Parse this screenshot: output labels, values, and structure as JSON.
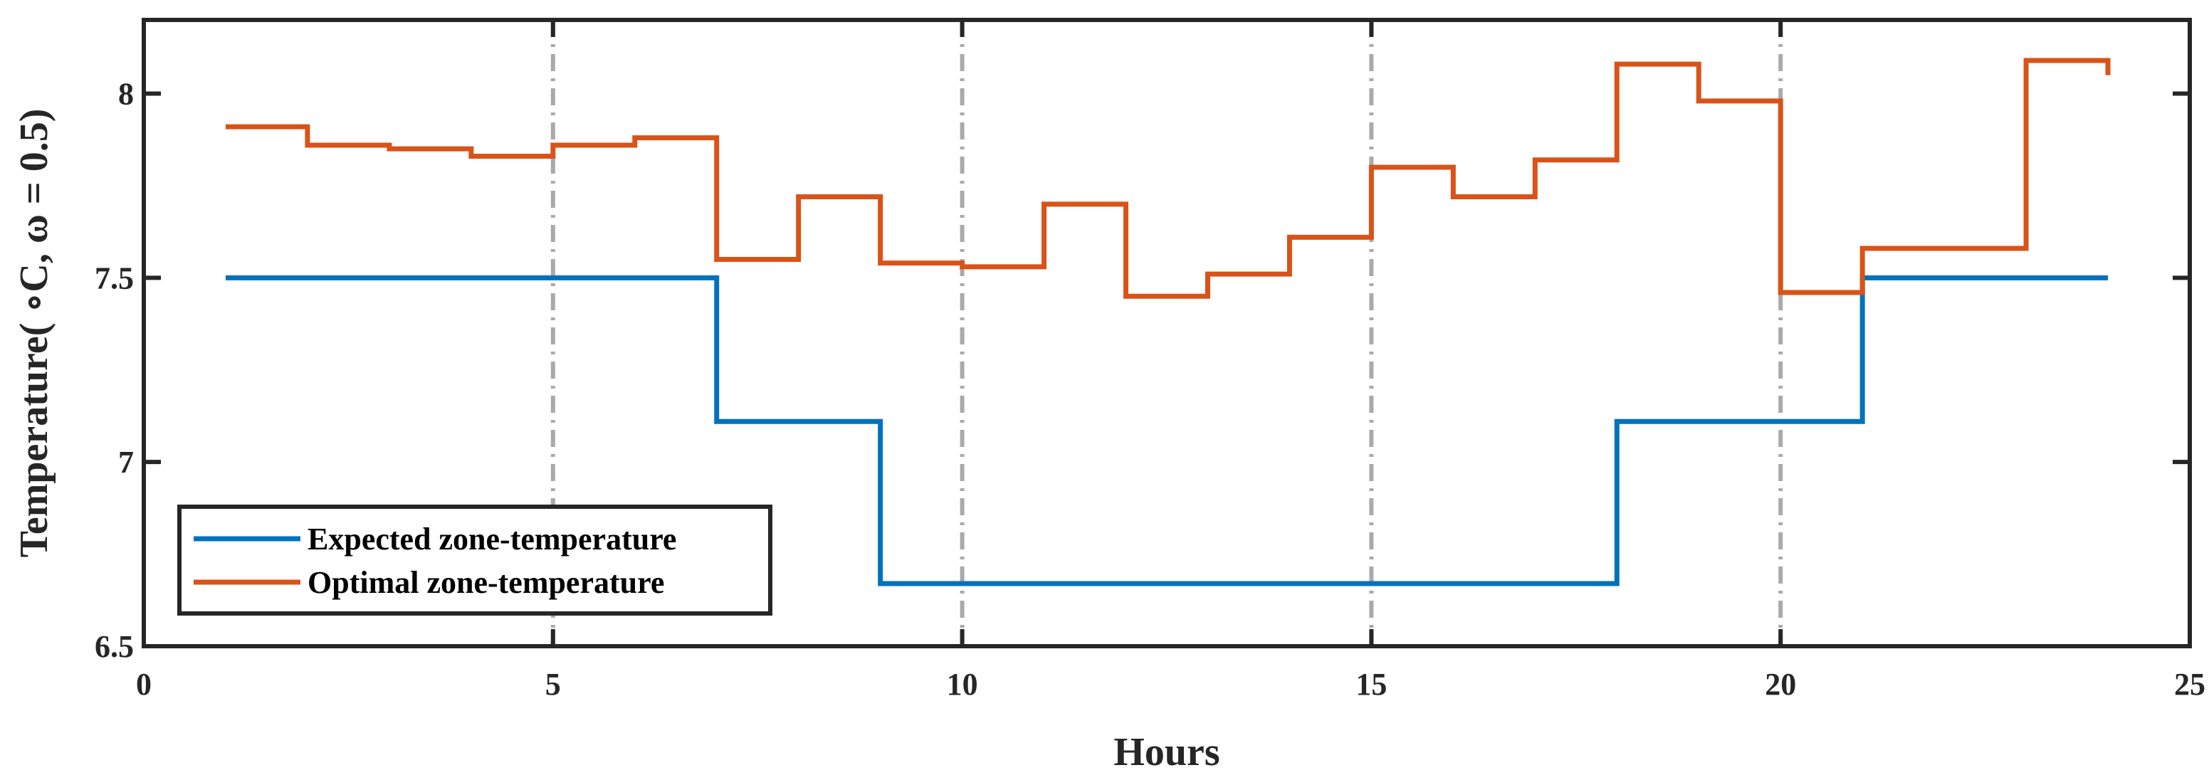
{
  "chart_data": {
    "type": "line",
    "step": true,
    "xlabel": "Hours",
    "ylabel": "Temperature( ∘C, ω = 0.5)",
    "xlim": [
      0,
      25
    ],
    "ylim": [
      6.5,
      8.2
    ],
    "xticks": [
      "0",
      "5",
      "10",
      "15",
      "20",
      "25"
    ],
    "yticks": [
      "6.5",
      "7",
      "7.5",
      "8"
    ],
    "grid": "vertical dash-dot lines at x = 5, 10, 15, 20",
    "legend_position": "bottom-left",
    "series": [
      {
        "name": "Expected zone-temperature",
        "color": "#0072BD",
        "x": [
          1,
          2,
          3,
          4,
          5,
          6,
          7,
          8,
          9,
          10,
          11,
          12,
          13,
          14,
          15,
          16,
          17,
          18,
          19,
          20,
          21,
          22,
          23,
          24
        ],
        "values": [
          7.5,
          7.5,
          7.5,
          7.5,
          7.5,
          7.5,
          7.11,
          7.11,
          6.67,
          6.67,
          6.67,
          6.67,
          6.67,
          6.67,
          6.67,
          6.67,
          6.67,
          7.11,
          7.11,
          7.11,
          7.5,
          7.5,
          7.5,
          7.5
        ]
      },
      {
        "name": "Optimal zone-temperature",
        "color": "#D95319",
        "x": [
          1,
          2,
          3,
          4,
          5,
          6,
          7,
          8,
          9,
          10,
          11,
          12,
          13,
          14,
          15,
          16,
          17,
          18,
          19,
          20,
          21,
          22,
          23,
          24
        ],
        "values": [
          7.91,
          7.86,
          7.85,
          7.83,
          7.86,
          7.88,
          7.55,
          7.72,
          7.54,
          7.53,
          7.7,
          7.45,
          7.51,
          7.61,
          7.8,
          7.72,
          7.82,
          8.08,
          7.98,
          7.46,
          7.58,
          7.58,
          8.09,
          8.05
        ]
      }
    ]
  }
}
